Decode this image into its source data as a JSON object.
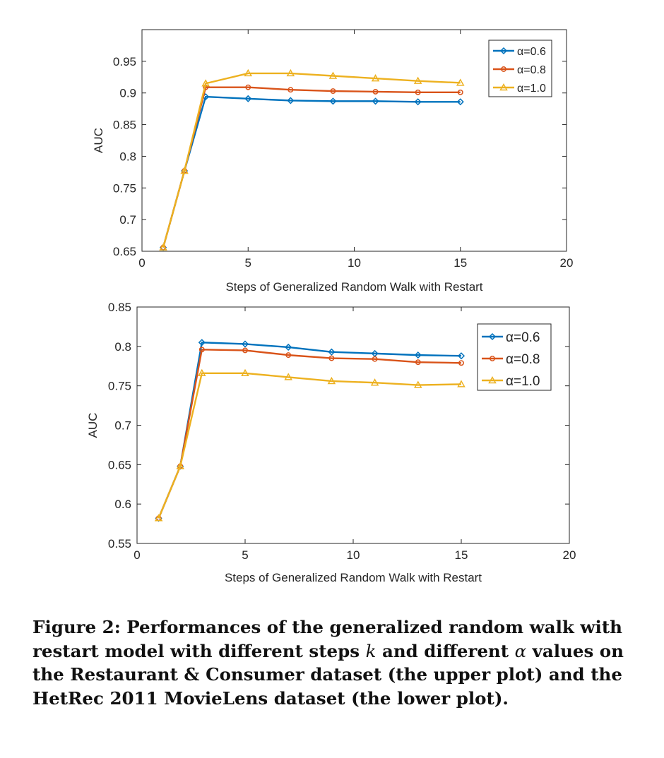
{
  "chart_data": [
    {
      "type": "line",
      "title": "",
      "xlabel": "Steps of Generalized Random Walk with Restart",
      "ylabel": "AUC",
      "xlim": [
        0,
        20
      ],
      "ylim": [
        0.65,
        1.0
      ],
      "xticks": [
        "0",
        "5",
        "10",
        "15",
        "20"
      ],
      "yticks": [
        "0.65",
        "0.7",
        "0.75",
        "0.8",
        "0.85",
        "0.9",
        "0.95"
      ],
      "legend_position": "top-right",
      "x": [
        1,
        2,
        3,
        5,
        7,
        9,
        11,
        13,
        15
      ],
      "series": [
        {
          "name": "α=0.6",
          "color": "#0072BD",
          "marker": "diamond",
          "values": [
            0.656,
            0.777,
            0.894,
            0.891,
            0.888,
            0.887,
            0.887,
            0.886,
            0.886
          ]
        },
        {
          "name": "α=0.8",
          "color": "#D95319",
          "marker": "circle",
          "values": [
            0.656,
            0.777,
            0.909,
            0.909,
            0.905,
            0.903,
            0.902,
            0.901,
            0.901
          ]
        },
        {
          "name": "α=1.0",
          "color": "#EDB120",
          "marker": "triangle",
          "values": [
            0.656,
            0.777,
            0.915,
            0.931,
            0.931,
            0.927,
            0.923,
            0.919,
            0.916
          ]
        }
      ]
    },
    {
      "type": "line",
      "title": "",
      "xlabel": "Steps of Generalized Random Walk with Restart",
      "ylabel": "AUC",
      "xlim": [
        0,
        20
      ],
      "ylim": [
        0.55,
        0.85
      ],
      "xticks": [
        "0",
        "5",
        "10",
        "15",
        "20"
      ],
      "yticks": [
        "0.55",
        "0.6",
        "0.65",
        "0.7",
        "0.75",
        "0.8",
        "0.85"
      ],
      "legend_position": "top-right",
      "x": [
        1,
        2,
        3,
        5,
        7,
        9,
        11,
        13,
        15
      ],
      "series": [
        {
          "name": "α=0.6",
          "color": "#0072BD",
          "marker": "diamond",
          "values": [
            0.582,
            0.648,
            0.805,
            0.803,
            0.799,
            0.793,
            0.791,
            0.789,
            0.788
          ]
        },
        {
          "name": "α=0.8",
          "color": "#D95319",
          "marker": "circle",
          "values": [
            0.582,
            0.648,
            0.796,
            0.795,
            0.789,
            0.785,
            0.784,
            0.78,
            0.779
          ]
        },
        {
          "name": "α=1.0",
          "color": "#EDB120",
          "marker": "triangle",
          "values": [
            0.582,
            0.648,
            0.766,
            0.766,
            0.761,
            0.756,
            0.754,
            0.751,
            0.752
          ]
        }
      ]
    }
  ],
  "caption": {
    "label": "Figure 2:",
    "part1": " Performances of the generalized random walk with restart model with different steps ",
    "var_k": "k",
    "part2": " and different ",
    "var_alpha": "α",
    "part3": " values on the Restaurant & Consumer dataset (the upper plot) and the HetRec 2011 MovieLens dataset (the lower plot)."
  }
}
